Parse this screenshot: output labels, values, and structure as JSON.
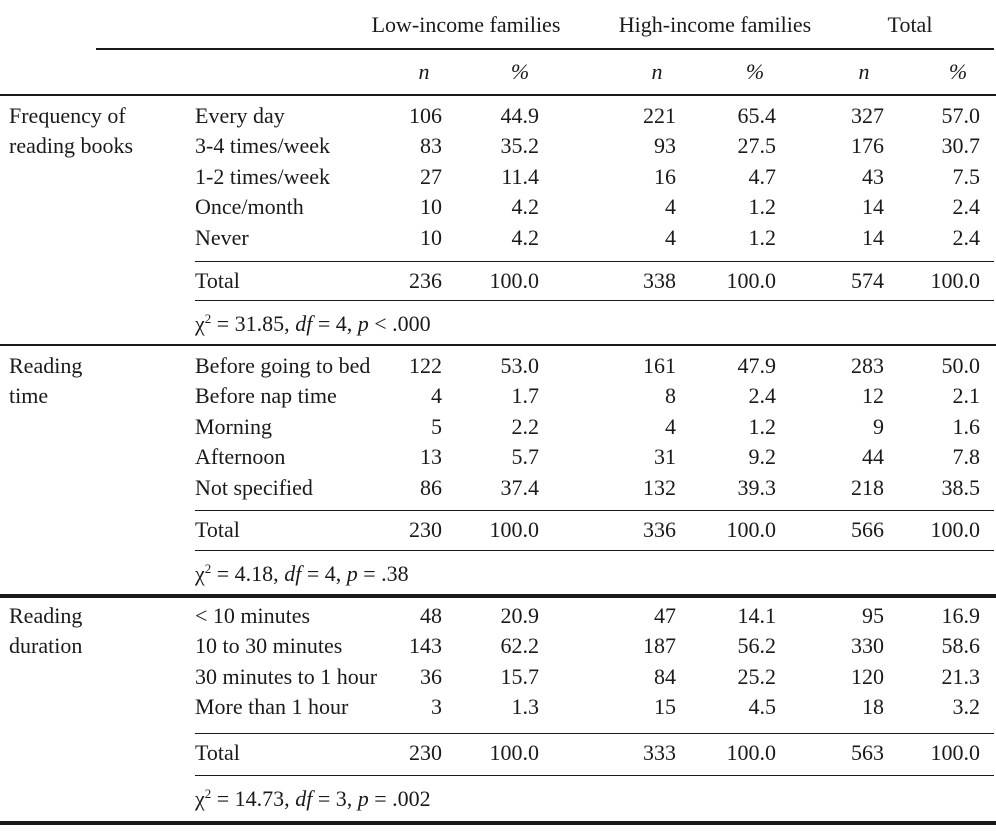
{
  "header": {
    "low_income": "Low-income families",
    "high_income": "High-income families",
    "total": "Total",
    "sub": {
      "n": "n",
      "pct": "%"
    }
  },
  "groups": [
    {
      "label_lines": [
        "Frequency of",
        "reading books"
      ],
      "rows": [
        {
          "label": "Every day",
          "values": [
            "106",
            "44.9",
            "221",
            "65.4",
            "327",
            "57.0"
          ]
        },
        {
          "label": "3-4 times/week",
          "values": [
            "83",
            "35.2",
            "93",
            "27.5",
            "176",
            "30.7"
          ]
        },
        {
          "label": "1-2 times/week",
          "values": [
            "27",
            "11.4",
            "16",
            "4.7",
            "43",
            "7.5"
          ]
        },
        {
          "label": "Once/month",
          "values": [
            "10",
            "4.2",
            "4",
            "1.2",
            "14",
            "2.4"
          ]
        },
        {
          "label": "Never",
          "values": [
            "10",
            "4.2",
            "4",
            "1.2",
            "14",
            "2.4"
          ]
        }
      ],
      "total": {
        "label": "Total",
        "values": [
          "236",
          "100.0",
          "338",
          "100.0",
          "574",
          "100.0"
        ]
      },
      "stat": {
        "chi": "χ",
        "sup": "2",
        "value": " = 31.85, ",
        "df_label": "df",
        "df_value": " = 4, ",
        "p_label": "p",
        "p_value": " < .000"
      }
    },
    {
      "label_lines": [
        "Reading",
        "time"
      ],
      "rows": [
        {
          "label": "Before going to bed",
          "values": [
            "122",
            "53.0",
            "161",
            "47.9",
            "283",
            "50.0"
          ]
        },
        {
          "label": "Before nap time",
          "values": [
            "4",
            "1.7",
            "8",
            "2.4",
            "12",
            "2.1"
          ]
        },
        {
          "label": "Morning",
          "values": [
            "5",
            "2.2",
            "4",
            "1.2",
            "9",
            "1.6"
          ]
        },
        {
          "label": "Afternoon",
          "values": [
            "13",
            "5.7",
            "31",
            "9.2",
            "44",
            "7.8"
          ]
        },
        {
          "label": "Not specified",
          "values": [
            "86",
            "37.4",
            "132",
            "39.3",
            "218",
            "38.5"
          ]
        }
      ],
      "total": {
        "label": "Total",
        "values": [
          "230",
          "100.0",
          "336",
          "100.0",
          "566",
          "100.0"
        ]
      },
      "stat": {
        "chi": "χ",
        "sup": "2",
        "value": " = 4.18, ",
        "df_label": "df",
        "df_value": " = 4, ",
        "p_label": "p",
        "p_value": " = .38"
      }
    },
    {
      "label_lines": [
        "Reading",
        "duration"
      ],
      "rows": [
        {
          "label": "< 10 minutes",
          "values": [
            "48",
            "20.9",
            "47",
            "14.1",
            "95",
            "16.9"
          ]
        },
        {
          "label": "10 to 30 minutes",
          "values": [
            "143",
            "62.2",
            "187",
            "56.2",
            "330",
            "58.6"
          ]
        },
        {
          "label": "30 minutes to 1 hour",
          "values": [
            "36",
            "15.7",
            "84",
            "25.2",
            "120",
            "21.3"
          ]
        },
        {
          "label": "More than 1 hour",
          "values": [
            "3",
            "1.3",
            "15",
            "4.5",
            "18",
            "3.2"
          ]
        }
      ],
      "total": {
        "label": "Total",
        "values": [
          "230",
          "100.0",
          "333",
          "100.0",
          "563",
          "100.0"
        ]
      },
      "stat": {
        "chi": "χ",
        "sup": "2",
        "value": " = 14.73, ",
        "df_label": "df",
        "df_value": " = 3, ",
        "p_label": "p",
        "p_value": " = .002"
      }
    }
  ]
}
